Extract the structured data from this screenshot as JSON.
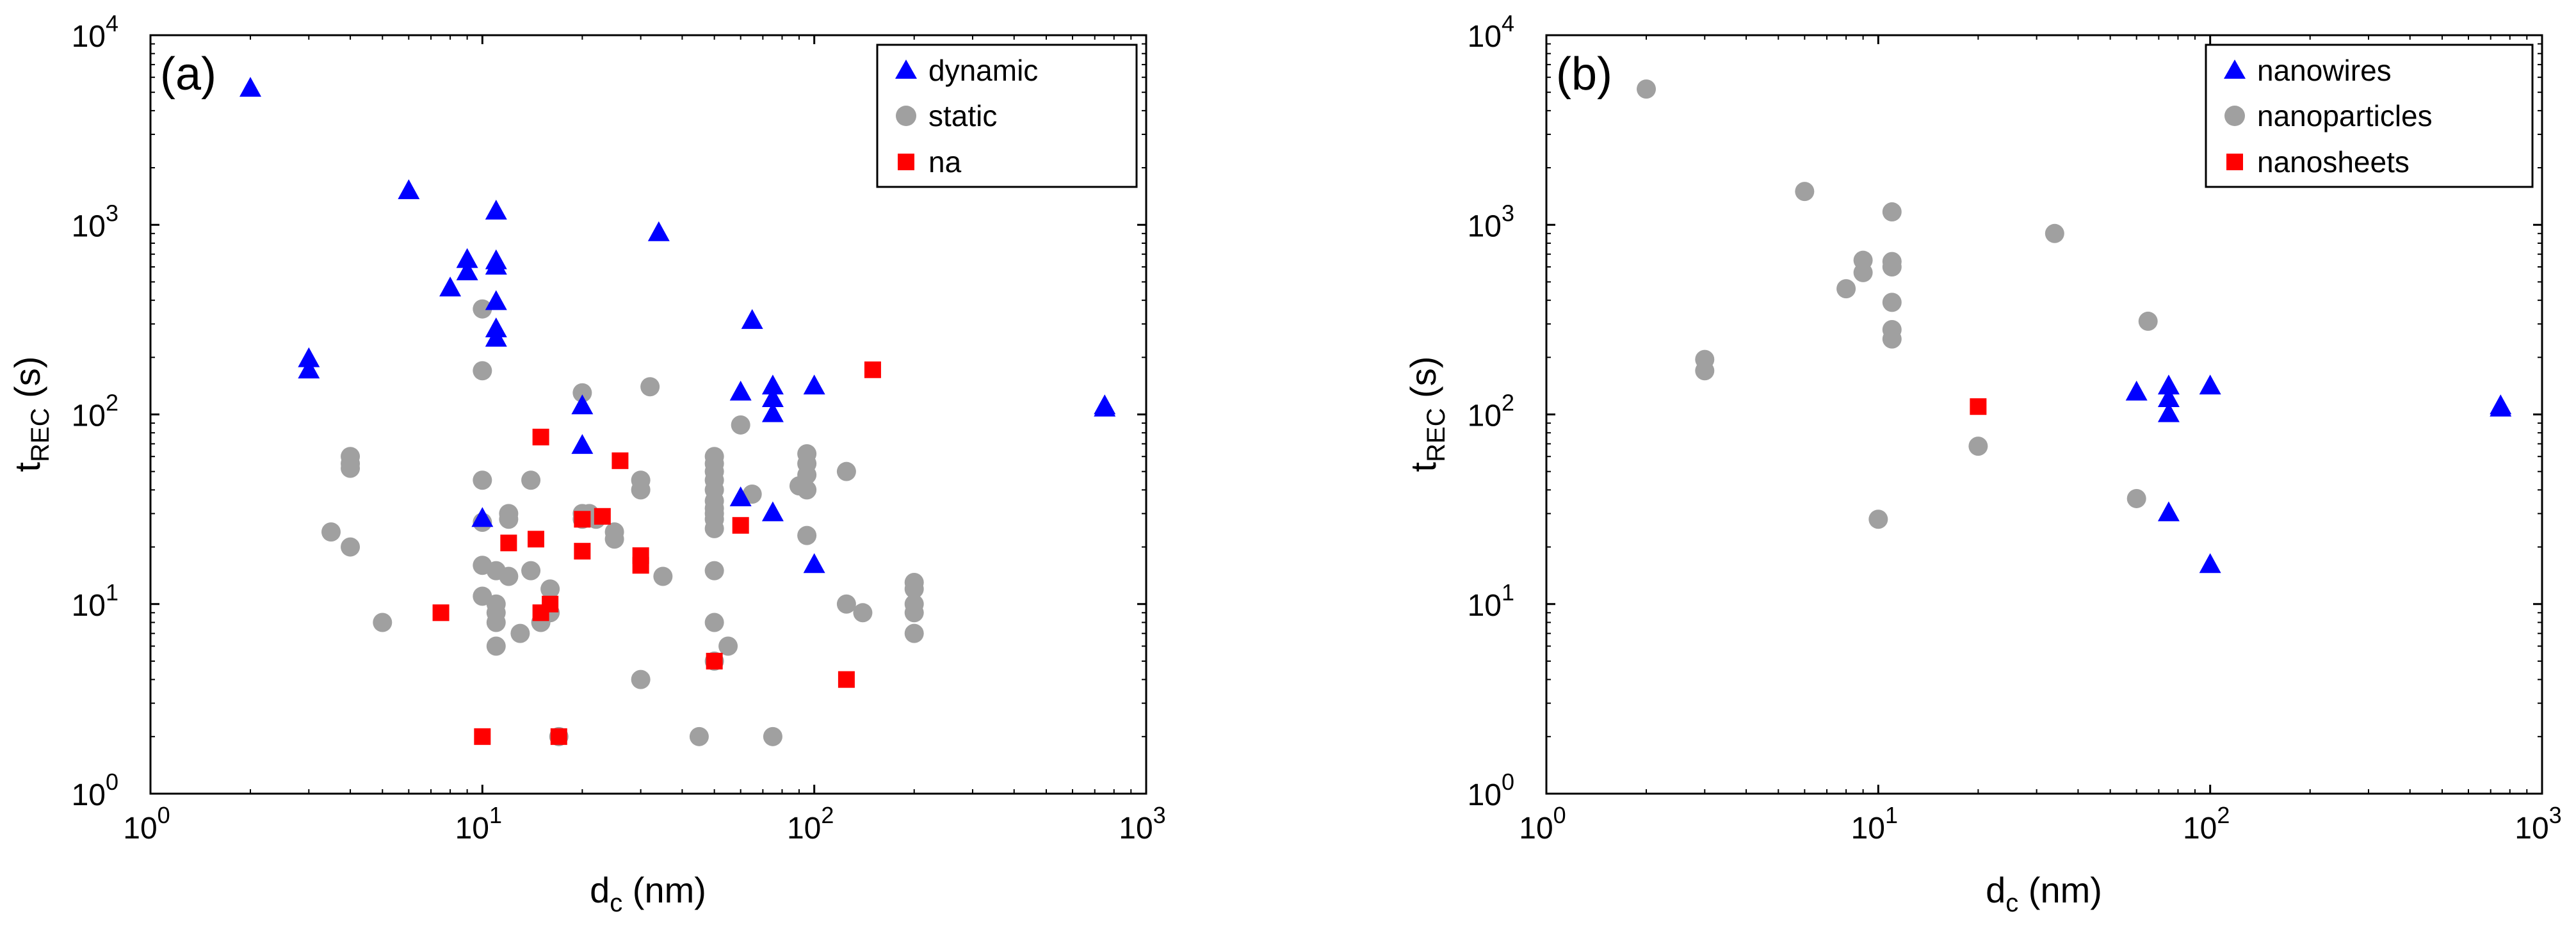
{
  "colors": {
    "blue": "#0000ff",
    "gray": "#a0a0a0",
    "red": "#ff0000"
  },
  "chart_data": [
    {
      "type": "scatter",
      "panel_label": "(a)",
      "xlabel": {
        "main": "d",
        "sub": "c",
        "unit": " (nm)"
      },
      "ylabel": {
        "main": "t",
        "sub": "REC",
        "unit": " (s)"
      },
      "xscale": "log",
      "yscale": "log",
      "xlim": [
        1,
        1000
      ],
      "ylim": [
        1,
        10000
      ],
      "xticks": [
        {
          "base": "10",
          "exp": "0",
          "v": 1
        },
        {
          "base": "10",
          "exp": "1",
          "v": 10
        },
        {
          "base": "10",
          "exp": "2",
          "v": 100
        },
        {
          "base": "10",
          "exp": "3",
          "v": 1000
        }
      ],
      "yticks": [
        {
          "base": "10",
          "exp": "0",
          "v": 1
        },
        {
          "base": "10",
          "exp": "1",
          "v": 10
        },
        {
          "base": "10",
          "exp": "2",
          "v": 100
        },
        {
          "base": "10",
          "exp": "3",
          "v": 1000
        },
        {
          "base": "10",
          "exp": "4",
          "v": 10000
        }
      ],
      "legend_position": "top-right",
      "series": [
        {
          "name": "dynamic",
          "marker": "triangle",
          "color": "#0000ff",
          "points": [
            [
              2,
              5200
            ],
            [
              3,
              195
            ],
            [
              3,
              170
            ],
            [
              6,
              1500
            ],
            [
              8,
              460
            ],
            [
              9,
              650
            ],
            [
              9,
              560
            ],
            [
              11,
              1170
            ],
            [
              11,
              640
            ],
            [
              11,
              600
            ],
            [
              11,
              390
            ],
            [
              11,
              280
            ],
            [
              11,
              250
            ],
            [
              10,
              28
            ],
            [
              20,
              110
            ],
            [
              20,
              68
            ],
            [
              34,
              900
            ],
            [
              60,
              36
            ],
            [
              60,
              130
            ],
            [
              65,
              310
            ],
            [
              75,
              140
            ],
            [
              75,
              120
            ],
            [
              75,
              100
            ],
            [
              75,
              30
            ],
            [
              100,
              140
            ],
            [
              100,
              16
            ],
            [
              750,
              110
            ],
            [
              750,
              107
            ]
          ]
        },
        {
          "name": "static",
          "marker": "circle",
          "color": "#a0a0a0",
          "points": [
            [
              3.5,
              24
            ],
            [
              4,
              60
            ],
            [
              4,
              55
            ],
            [
              4,
              52
            ],
            [
              4,
              20
            ],
            [
              5,
              8
            ],
            [
              10,
              360
            ],
            [
              10,
              170
            ],
            [
              10,
              45
            ],
            [
              10,
              27
            ],
            [
              10,
              16
            ],
            [
              10,
              11
            ],
            [
              11,
              15
            ],
            [
              11,
              10
            ],
            [
              11,
              9
            ],
            [
              11,
              8
            ],
            [
              11,
              6
            ],
            [
              12,
              30
            ],
            [
              12,
              28
            ],
            [
              12,
              14
            ],
            [
              13,
              7
            ],
            [
              14,
              45
            ],
            [
              14,
              15
            ],
            [
              15,
              8
            ],
            [
              16,
              12
            ],
            [
              16,
              9
            ],
            [
              17,
              2
            ],
            [
              20,
              130
            ],
            [
              20,
              30
            ],
            [
              20,
              28
            ],
            [
              21,
              30
            ],
            [
              22,
              28
            ],
            [
              25,
              22
            ],
            [
              25,
              24
            ],
            [
              30,
              45
            ],
            [
              30,
              40
            ],
            [
              30,
              4
            ],
            [
              32,
              140
            ],
            [
              35,
              14
            ],
            [
              45,
              2
            ],
            [
              50,
              60
            ],
            [
              50,
              55
            ],
            [
              50,
              50
            ],
            [
              50,
              45
            ],
            [
              50,
              40
            ],
            [
              50,
              35
            ],
            [
              50,
              32
            ],
            [
              50,
              30
            ],
            [
              50,
              28
            ],
            [
              50,
              25
            ],
            [
              50,
              15
            ],
            [
              50,
              8
            ],
            [
              50,
              5
            ],
            [
              55,
              6
            ],
            [
              60,
              88
            ],
            [
              65,
              38
            ],
            [
              75,
              2
            ],
            [
              90,
              42
            ],
            [
              95,
              62
            ],
            [
              95,
              55
            ],
            [
              95,
              48
            ],
            [
              95,
              40
            ],
            [
              95,
              23
            ],
            [
              125,
              50
            ],
            [
              125,
              10
            ],
            [
              140,
              9
            ],
            [
              200,
              13
            ],
            [
              200,
              12
            ],
            [
              200,
              10
            ],
            [
              200,
              9
            ],
            [
              200,
              7
            ]
          ]
        },
        {
          "name": "na",
          "marker": "square",
          "color": "#ff0000",
          "points": [
            [
              7.5,
              9
            ],
            [
              10,
              2
            ],
            [
              12,
              21
            ],
            [
              14.5,
              22
            ],
            [
              15,
              76
            ],
            [
              15,
              9
            ],
            [
              16,
              10
            ],
            [
              17,
              2
            ],
            [
              20,
              28
            ],
            [
              20,
              19
            ],
            [
              23,
              29
            ],
            [
              26,
              57
            ],
            [
              30,
              18
            ],
            [
              30,
              16
            ],
            [
              50,
              5
            ],
            [
              60,
              26
            ],
            [
              125,
              4
            ],
            [
              150,
              172
            ]
          ]
        }
      ]
    },
    {
      "type": "scatter",
      "panel_label": "(b)",
      "xlabel": {
        "main": "d",
        "sub": "c",
        "unit": " (nm)"
      },
      "ylabel": {
        "main": "t",
        "sub": "REC",
        "unit": " (s)"
      },
      "xscale": "log",
      "yscale": "log",
      "xlim": [
        1,
        1000
      ],
      "ylim": [
        1,
        10000
      ],
      "xticks": [
        {
          "base": "10",
          "exp": "0",
          "v": 1
        },
        {
          "base": "10",
          "exp": "1",
          "v": 10
        },
        {
          "base": "10",
          "exp": "2",
          "v": 100
        },
        {
          "base": "10",
          "exp": "3",
          "v": 1000
        }
      ],
      "yticks": [
        {
          "base": "10",
          "exp": "0",
          "v": 1
        },
        {
          "base": "10",
          "exp": "1",
          "v": 10
        },
        {
          "base": "10",
          "exp": "2",
          "v": 100
        },
        {
          "base": "10",
          "exp": "3",
          "v": 1000
        },
        {
          "base": "10",
          "exp": "4",
          "v": 10000
        }
      ],
      "legend_position": "top-right",
      "series": [
        {
          "name": "nanowires",
          "marker": "triangle",
          "color": "#0000ff",
          "points": [
            [
              60,
              130
            ],
            [
              75,
              140
            ],
            [
              75,
              120
            ],
            [
              75,
              100
            ],
            [
              75,
              30
            ],
            [
              100,
              140
            ],
            [
              100,
              16
            ],
            [
              750,
              110
            ],
            [
              750,
              107
            ]
          ]
        },
        {
          "name": "nanoparticles",
          "marker": "circle",
          "color": "#a0a0a0",
          "points": [
            [
              2,
              5200
            ],
            [
              3,
              195
            ],
            [
              3,
              170
            ],
            [
              6,
              1500
            ],
            [
              8,
              460
            ],
            [
              9,
              650
            ],
            [
              9,
              560
            ],
            [
              10,
              28
            ],
            [
              11,
              1170
            ],
            [
              11,
              640
            ],
            [
              11,
              600
            ],
            [
              11,
              390
            ],
            [
              11,
              280
            ],
            [
              11,
              250
            ],
            [
              20,
              68
            ],
            [
              34,
              900
            ],
            [
              60,
              36
            ],
            [
              65,
              310
            ]
          ]
        },
        {
          "name": "nanosheets",
          "marker": "square",
          "color": "#ff0000",
          "points": [
            [
              20,
              110
            ]
          ]
        }
      ]
    }
  ]
}
